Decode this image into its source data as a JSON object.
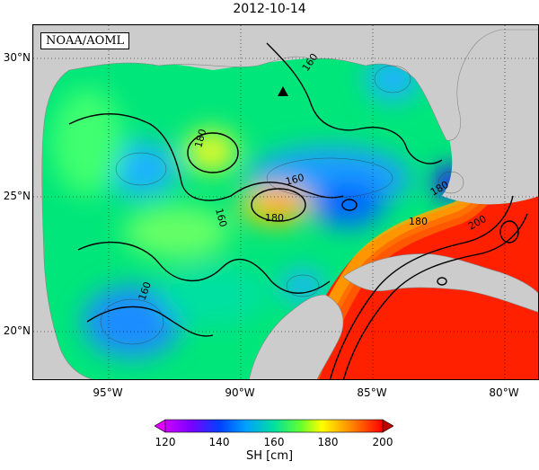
{
  "title": "2012-10-14",
  "badge": "NOAA/AOML",
  "colorbar": {
    "title": "SH [cm]",
    "ticks": [
      "120",
      "140",
      "160",
      "180",
      "200"
    ]
  },
  "lat_labels": [
    "30°N",
    "25°N",
    "20°N"
  ],
  "lon_labels": [
    "95°W",
    "90°W",
    "85°W",
    "80°W"
  ],
  "contour_labels": [
    "160",
    "180",
    "180",
    "160",
    "160",
    "180",
    "160",
    "180",
    "200"
  ],
  "colors": {
    "land": "#cccccc",
    "low": "#7a00ff",
    "mid": "#00e676",
    "high": "#ff1a00"
  }
}
